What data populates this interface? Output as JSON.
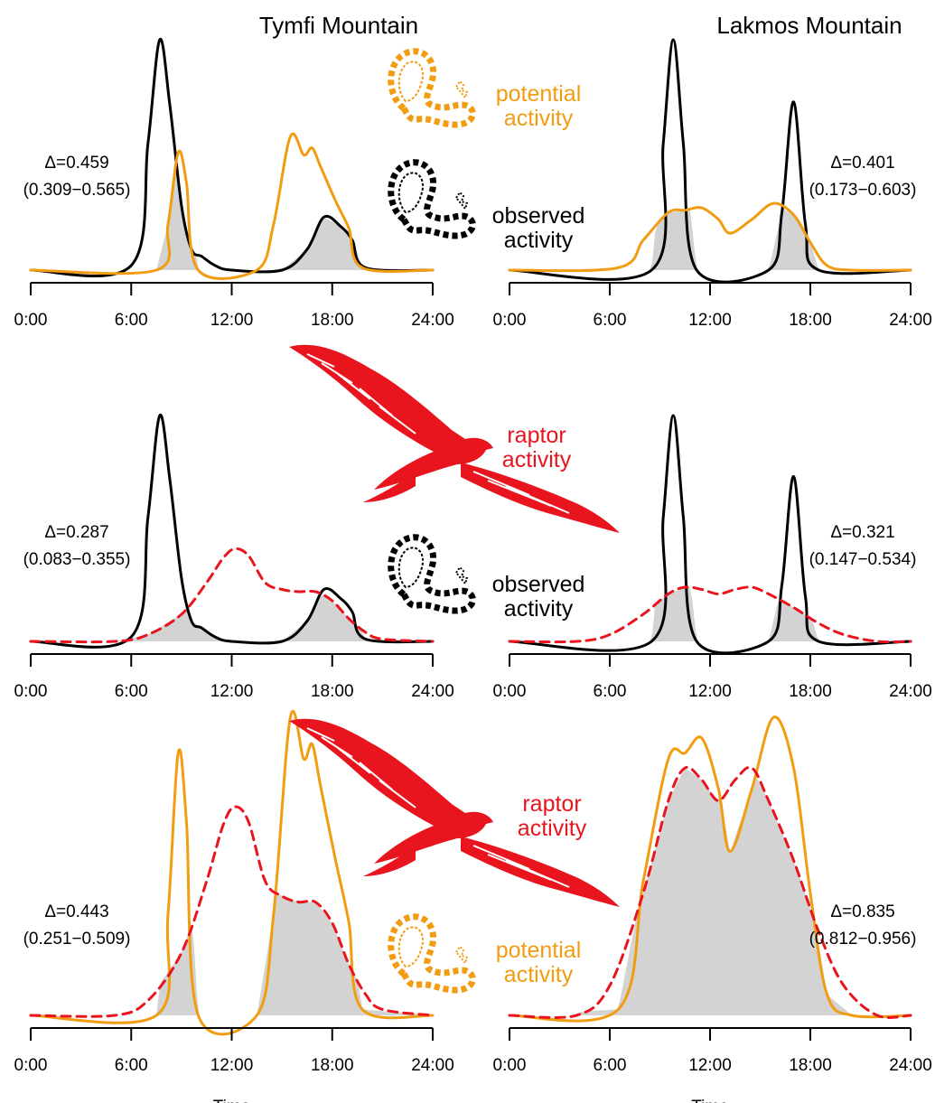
{
  "colors": {
    "observed": "#000000",
    "potential": "#f29c12",
    "raptor": "#e8141e",
    "overlap_fill": "#d3d3d3",
    "axis": "#000000"
  },
  "icons": {
    "snake": "snake-silhouette-icon",
    "raptor": "raptor-silhouette-icon"
  },
  "columns": [
    "Tymfi Mountain",
    "Lakmos Mountain"
  ],
  "legend_labels": {
    "potential": [
      "potential",
      "activity"
    ],
    "observed": [
      "observed",
      "activity"
    ],
    "raptor": [
      "raptor",
      "activity"
    ]
  },
  "chart_data": [
    {
      "type": "area",
      "site": "Tymfi Mountain",
      "xlabel": "",
      "xlim": [
        0,
        24
      ],
      "xticks": [
        "0:00",
        "6:00",
        "12:00",
        "18:00",
        "24:00"
      ],
      "delta": "Δ=0.459",
      "ci": "(0.309−0.565)",
      "series": [
        {
          "key": "observed",
          "style": "solid",
          "x": [
            0,
            6,
            7,
            7.7,
            8.3,
            9,
            9.6,
            10.2,
            11,
            12,
            15,
            16.5,
            17.5,
            18.5,
            19.2,
            20,
            24
          ],
          "y": [
            0,
            0.02,
            0.55,
            1.0,
            0.72,
            0.28,
            0.09,
            0.06,
            0.02,
            0,
            0,
            0.09,
            0.23,
            0.19,
            0.13,
            0.01,
            0
          ]
        },
        {
          "key": "potential",
          "style": "solid",
          "x": [
            0,
            7.5,
            8.2,
            8.8,
            9.3,
            10,
            13.5,
            14.5,
            15.5,
            16.3,
            16.8,
            17.3,
            18.2,
            19,
            19.8,
            24
          ],
          "y": [
            0,
            0,
            0.2,
            0.51,
            0.38,
            0,
            0,
            0.2,
            0.58,
            0.5,
            0.53,
            0.45,
            0.3,
            0.18,
            0.01,
            0
          ]
        }
      ]
    },
    {
      "type": "area",
      "site": "Lakmos Mountain",
      "xlabel": "",
      "xlim": [
        0,
        24
      ],
      "xticks": [
        "0:00",
        "6:00",
        "12:00",
        "18:00",
        "24:00"
      ],
      "delta": "Δ=0.401",
      "ci": "(0.173−0.603)",
      "series": [
        {
          "key": "observed",
          "style": "solid",
          "x": [
            0,
            8.5,
            9.2,
            9.8,
            10.4,
            11.2,
            15.5,
            16.3,
            17,
            17.7,
            18.5,
            24
          ],
          "y": [
            0,
            0,
            0.55,
            1.0,
            0.55,
            0,
            0,
            0.25,
            0.73,
            0.2,
            0,
            0
          ]
        },
        {
          "key": "potential",
          "style": "solid",
          "x": [
            0,
            6.5,
            8,
            9.5,
            10.5,
            11.5,
            12.5,
            13.2,
            14.5,
            15.8,
            17,
            18,
            19,
            20.5,
            24
          ],
          "y": [
            0,
            0.01,
            0.13,
            0.25,
            0.26,
            0.27,
            0.22,
            0.16,
            0.22,
            0.29,
            0.24,
            0.12,
            0.02,
            0,
            0
          ]
        }
      ]
    },
    {
      "type": "area",
      "site": "Tymfi Mountain",
      "xlabel": "",
      "xlim": [
        0,
        24
      ],
      "xticks": [
        "0:00",
        "6:00",
        "12:00",
        "18:00",
        "24:00"
      ],
      "delta": "Δ=0.287",
      "ci": "(0.083−0.355)",
      "series": [
        {
          "key": "observed",
          "style": "solid",
          "x": [
            0,
            6,
            7,
            7.7,
            8.3,
            9,
            9.6,
            10.2,
            11,
            12,
            15,
            16.5,
            17.5,
            18.5,
            19.2,
            20,
            24
          ],
          "y": [
            0,
            0.02,
            0.55,
            1.0,
            0.72,
            0.28,
            0.09,
            0.06,
            0.02,
            0,
            0,
            0.09,
            0.23,
            0.19,
            0.13,
            0.01,
            0
          ]
        },
        {
          "key": "raptor",
          "style": "dashed",
          "x": [
            0,
            5,
            7,
            9,
            10.5,
            11.5,
            12.2,
            13,
            14,
            15,
            16,
            17,
            18,
            19,
            20,
            21,
            24
          ],
          "y": [
            0,
            0,
            0.03,
            0.12,
            0.26,
            0.37,
            0.41,
            0.38,
            0.26,
            0.23,
            0.22,
            0.22,
            0.18,
            0.1,
            0.04,
            0.01,
            0
          ]
        }
      ]
    },
    {
      "type": "area",
      "site": "Lakmos Mountain",
      "xlabel": "",
      "xlim": [
        0,
        24
      ],
      "xticks": [
        "0:00",
        "6:00",
        "12:00",
        "18:00",
        "24:00"
      ],
      "delta": "Δ=0.321",
      "ci": "(0.147−0.534)",
      "series": [
        {
          "key": "observed",
          "style": "solid",
          "x": [
            0,
            8.5,
            9.2,
            9.8,
            10.4,
            11.2,
            15.5,
            16.3,
            17,
            17.7,
            18.5,
            24
          ],
          "y": [
            0,
            0,
            0.55,
            1.0,
            0.55,
            0,
            0,
            0.25,
            0.73,
            0.2,
            0,
            0
          ]
        },
        {
          "key": "raptor",
          "style": "dashed",
          "x": [
            0,
            4,
            6,
            8,
            9.5,
            10.5,
            11.5,
            12.5,
            13.5,
            14.5,
            15.5,
            17,
            18.5,
            20,
            22,
            24
          ],
          "y": [
            0,
            0,
            0.03,
            0.12,
            0.21,
            0.24,
            0.23,
            0.21,
            0.23,
            0.24,
            0.21,
            0.15,
            0.08,
            0.03,
            0,
            0
          ]
        }
      ]
    },
    {
      "type": "area",
      "site": "Tymfi Mountain",
      "xlabel": "Time",
      "xlim": [
        0,
        24
      ],
      "xticks": [
        "0:00",
        "6:00",
        "12:00",
        "18:00",
        "24:00"
      ],
      "delta": "Δ=0.443",
      "ci": "(0.251−0.509)",
      "series": [
        {
          "key": "potential",
          "style": "solid",
          "x": [
            0,
            7.5,
            8.2,
            8.8,
            9.3,
            10,
            13.5,
            14.5,
            15.5,
            16.3,
            16.8,
            17.3,
            18.2,
            19,
            19.8,
            24
          ],
          "y": [
            0,
            0,
            0.34,
            0.88,
            0.65,
            0,
            0,
            0.34,
            1.0,
            0.86,
            0.91,
            0.77,
            0.52,
            0.31,
            0.02,
            0
          ]
        },
        {
          "key": "raptor",
          "style": "dashed",
          "x": [
            0,
            5,
            7,
            9,
            10.5,
            11.5,
            12.2,
            13,
            14,
            15,
            16,
            17,
            18,
            19,
            20,
            21,
            24
          ],
          "y": [
            0,
            0,
            0.05,
            0.21,
            0.45,
            0.64,
            0.7,
            0.65,
            0.45,
            0.4,
            0.38,
            0.38,
            0.31,
            0.17,
            0.07,
            0.02,
            0
          ]
        }
      ]
    },
    {
      "type": "area",
      "site": "Lakmos Mountain",
      "xlabel": "Time",
      "xlim": [
        0,
        24
      ],
      "xticks": [
        "0:00",
        "6:00",
        "12:00",
        "18:00",
        "24:00"
      ],
      "delta": "Δ=0.835",
      "ci": "(0.812−0.956)",
      "series": [
        {
          "key": "potential",
          "style": "solid",
          "x": [
            0,
            6.5,
            8,
            9.5,
            10.5,
            11.5,
            12.5,
            13.2,
            14.5,
            15.8,
            17,
            18,
            19,
            20.5,
            24
          ],
          "y": [
            0,
            0.02,
            0.45,
            0.86,
            0.88,
            0.93,
            0.76,
            0.55,
            0.76,
            1.0,
            0.83,
            0.41,
            0.07,
            0,
            0
          ]
        },
        {
          "key": "raptor",
          "style": "dashed",
          "x": [
            0,
            4,
            6,
            8,
            9.5,
            10.5,
            11.5,
            12.5,
            13.5,
            14.5,
            15.5,
            17,
            18.5,
            20,
            22,
            24
          ],
          "y": [
            0,
            0,
            0.1,
            0.41,
            0.72,
            0.83,
            0.79,
            0.72,
            0.79,
            0.83,
            0.72,
            0.52,
            0.28,
            0.1,
            0,
            0
          ]
        }
      ]
    }
  ]
}
